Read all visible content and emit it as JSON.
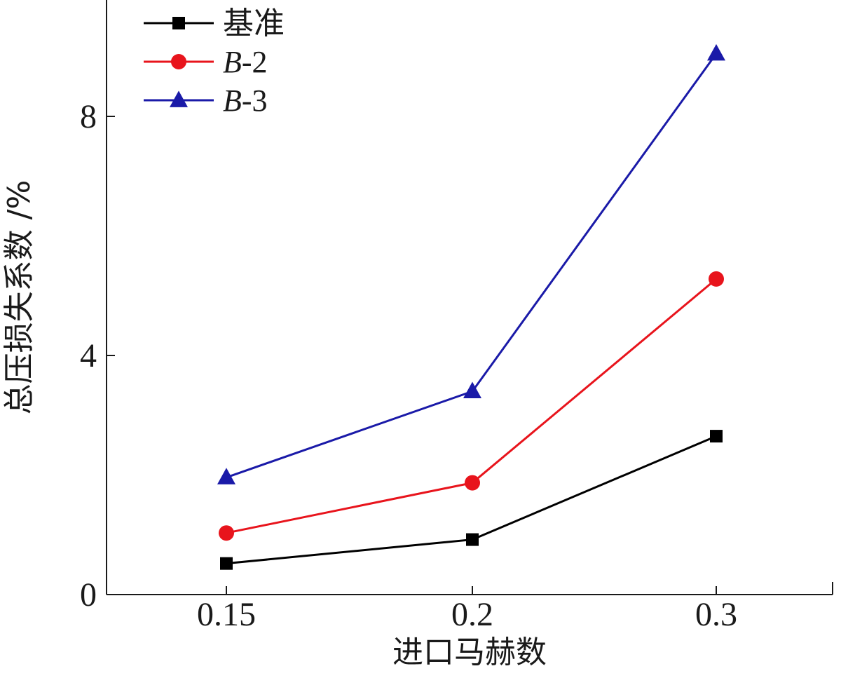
{
  "chart_data": {
    "type": "line",
    "xlabel": "进口马赫数",
    "ylabel": "总压损失系数 /%",
    "categories": [
      "0.15",
      "0.2",
      "0.3"
    ],
    "yticks": [
      "0",
      "4",
      "8"
    ],
    "ylim": [
      0,
      10
    ],
    "grid": false,
    "legend_position": "top-left",
    "series": [
      {
        "name": "基准",
        "values": [
          0.52,
          0.92,
          2.65
        ],
        "color": "#000000",
        "marker": "square"
      },
      {
        "name": "B-2",
        "values": [
          1.03,
          1.87,
          5.28
        ],
        "color": "#e8141c",
        "marker": "circle"
      },
      {
        "name": "B-3",
        "values": [
          1.96,
          3.4,
          9.05
        ],
        "color": "#1a1aa8",
        "marker": "triangle"
      }
    ]
  }
}
